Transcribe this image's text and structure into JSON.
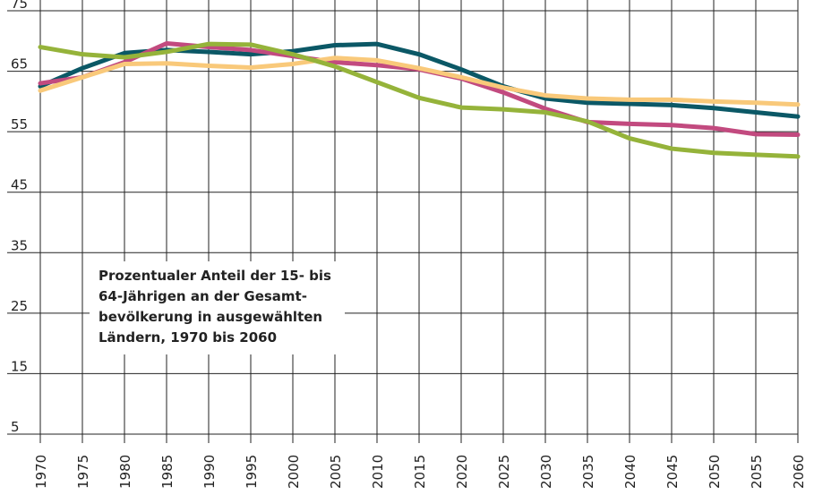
{
  "chart_data": {
    "type": "line",
    "annotation": [
      "Prozentualer Anteil der 15- bis",
      "64-Jährigen an der Gesamt-",
      "bevölkerung in ausgewählten",
      "Ländern, 1970 bis 2060"
    ],
    "x": [
      1970,
      1975,
      1980,
      1985,
      1990,
      1995,
      2000,
      2005,
      2010,
      2015,
      2020,
      2025,
      2030,
      2035,
      2040,
      2045,
      2050,
      2055,
      2060
    ],
    "xlim": [
      1970,
      2060
    ],
    "xticks": [
      1970,
      1975,
      1980,
      1985,
      1990,
      1995,
      2000,
      2005,
      2010,
      2015,
      2020,
      2025,
      2030,
      2035,
      2040,
      2045,
      2050,
      2055,
      2060
    ],
    "ylim": [
      5,
      75
    ],
    "yticks": [
      5,
      15,
      25,
      35,
      45,
      55,
      65,
      75
    ],
    "grid": true,
    "series": [
      {
        "color": "#0b5866",
        "values": [
          62.5,
          65.5,
          68,
          68.5,
          68.2,
          67.8,
          68.3,
          69.3,
          69.5,
          67.8,
          65.3,
          62.5,
          60.5,
          59.8,
          59.6,
          59.4,
          58.9,
          58.2,
          57.5
        ]
      },
      {
        "color": "#c24a7f",
        "values": [
          63,
          64,
          66.5,
          69.6,
          69,
          68.5,
          67.5,
          66.5,
          66,
          65.3,
          63.8,
          61.5,
          58.8,
          56.6,
          56.3,
          56.1,
          55.6,
          54.6,
          54.5
        ]
      },
      {
        "color": "#f9c97a",
        "values": [
          61.8,
          64,
          66.2,
          66.3,
          65.9,
          65.6,
          66.2,
          67.2,
          66.8,
          65.5,
          64,
          62.3,
          61,
          60.5,
          60.3,
          60.3,
          60,
          59.8,
          59.5
        ]
      },
      {
        "color": "#95b33a",
        "values": [
          69,
          67.8,
          67.3,
          68.2,
          69.5,
          69.4,
          67.8,
          65.8,
          63.2,
          60.6,
          59,
          58.7,
          58.2,
          56.7,
          53.9,
          52.2,
          51.5,
          51.2,
          50.9
        ]
      }
    ]
  }
}
